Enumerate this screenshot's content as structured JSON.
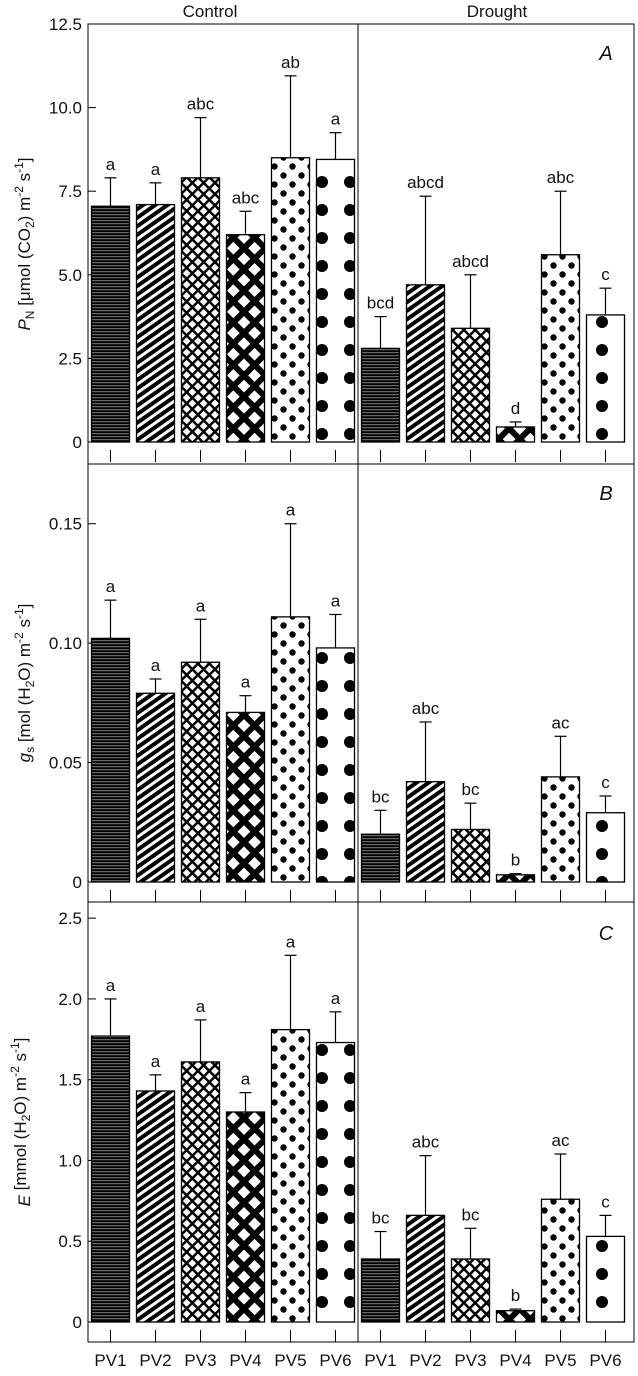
{
  "chart_data": {
    "type": "bar",
    "groups": [
      "Control",
      "Drought"
    ],
    "categories": [
      "PV1",
      "PV2",
      "PV3",
      "PV4",
      "PV5",
      "PV6"
    ],
    "panels": [
      {
        "letter": "A",
        "ylabel": {
          "main": "P",
          "sub": "N",
          "rest": " [μmol (CO",
          "rest_sub": "2",
          "rest2": ") m",
          "sup1": "-2",
          "rest3": " s",
          "sup2": "-1",
          "rest4": "]"
        },
        "ylim": [
          0,
          12.5
        ],
        "yticks": [
          0,
          2.5,
          5.0,
          7.5,
          10.0,
          12.5
        ],
        "ytick_labels": [
          "0",
          "2.5",
          "5.0",
          "7.5",
          "10.0",
          "12.5"
        ],
        "series": [
          {
            "name": "Control",
            "values": [
              7.05,
              7.1,
              7.9,
              6.2,
              8.5,
              8.45
            ],
            "errors": [
              0.85,
              0.65,
              1.8,
              0.7,
              2.45,
              0.8
            ],
            "labels": [
              "a",
              "a",
              "abc",
              "abc",
              "ab",
              "a"
            ]
          },
          {
            "name": "Drought",
            "values": [
              2.8,
              4.7,
              3.4,
              0.45,
              5.6,
              3.8
            ],
            "errors": [
              0.95,
              2.65,
              1.6,
              0.15,
              1.9,
              0.8
            ],
            "labels": [
              "bcd",
              "abcd",
              "abcd",
              "d",
              "abc",
              "c"
            ]
          }
        ]
      },
      {
        "letter": "B",
        "ylabel": {
          "main": "g",
          "sub": "s",
          "rest": " [mol (H",
          "rest_sub": "2",
          "rest2": "O) m",
          "sup1": "-2",
          "rest3": " s",
          "sup2": "-1",
          "rest4": "]"
        },
        "ylim": [
          0,
          0.175
        ],
        "yticks": [
          0,
          0.05,
          0.1,
          0.15
        ],
        "ytick_labels": [
          "0",
          "0.05",
          "0.10",
          "0.15"
        ],
        "series": [
          {
            "name": "Control",
            "values": [
              0.102,
              0.079,
              0.092,
              0.071,
              0.111,
              0.098
            ],
            "errors": [
              0.016,
              0.006,
              0.018,
              0.007,
              0.039,
              0.014
            ],
            "labels": [
              "a",
              "a",
              "a",
              "a",
              "a",
              "a"
            ]
          },
          {
            "name": "Drought",
            "values": [
              0.02,
              0.042,
              0.022,
              0.003,
              0.044,
              0.029
            ],
            "errors": [
              0.01,
              0.025,
              0.011,
              0.0005,
              0.017,
              0.007
            ],
            "labels": [
              "bc",
              "abc",
              "bc",
              "b",
              "ac",
              "c"
            ]
          }
        ]
      },
      {
        "letter": "C",
        "ylabel": {
          "main": "E",
          "sub": "",
          "rest": " [mmol (H",
          "rest_sub": "2",
          "rest2": "O) m",
          "sup1": "-2",
          "rest3": " s",
          "sup2": "-1",
          "rest4": "]"
        },
        "ylim": [
          0,
          2.6
        ],
        "yticks": [
          0,
          0.5,
          1.0,
          1.5,
          2.0,
          2.5
        ],
        "ytick_labels": [
          "0",
          "0.5",
          "1.0",
          "1.5",
          "2.0",
          "2.5"
        ],
        "series": [
          {
            "name": "Control",
            "values": [
              1.77,
              1.43,
              1.61,
              1.3,
              1.81,
              1.73
            ],
            "errors": [
              0.23,
              0.1,
              0.26,
              0.12,
              0.46,
              0.19
            ],
            "labels": [
              "a",
              "a",
              "a",
              "a",
              "a",
              "a"
            ]
          },
          {
            "name": "Drought",
            "values": [
              0.39,
              0.66,
              0.39,
              0.07,
              0.76,
              0.53
            ],
            "errors": [
              0.17,
              0.37,
              0.19,
              0.01,
              0.28,
              0.13
            ],
            "labels": [
              "bc",
              "abc",
              "bc",
              "b",
              "ac",
              "c"
            ]
          }
        ]
      }
    ]
  }
}
